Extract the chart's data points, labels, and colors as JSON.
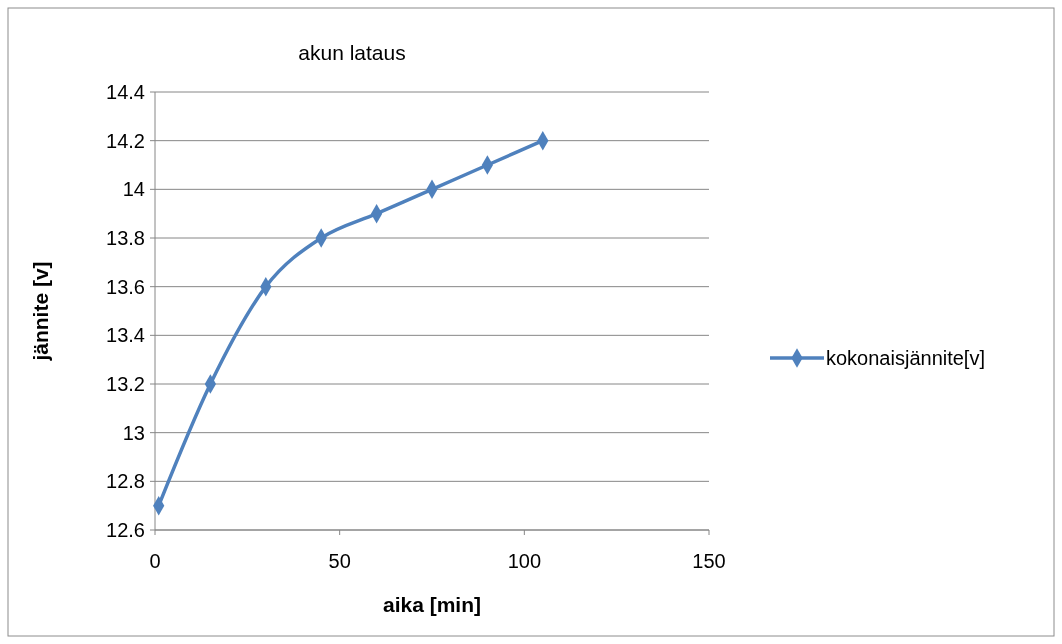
{
  "chart_data": {
    "type": "line",
    "title": "akun lataus",
    "xlabel": "aika [min]",
    "ylabel": "jännite [v]",
    "x": [
      1,
      15,
      30,
      45,
      60,
      75,
      90,
      105
    ],
    "series": [
      {
        "name": "kokonaisjännite[v]",
        "color": "#4f81bd",
        "values": [
          12.7,
          13.2,
          13.6,
          13.8,
          13.9,
          14.0,
          14.1,
          14.2
        ]
      }
    ],
    "xlim": [
      0,
      150
    ],
    "xticks": [
      0,
      50,
      100,
      150
    ],
    "ylim": [
      12.6,
      14.4
    ],
    "yticks": [
      {
        "value": 12.6,
        "label": "12.6"
      },
      {
        "value": 12.8,
        "label": "12.8"
      },
      {
        "value": 13,
        "label": "13"
      },
      {
        "value": 13.2,
        "label": "13.2"
      },
      {
        "value": 13.4,
        "label": "13.4"
      },
      {
        "value": 13.6,
        "label": "13.6"
      },
      {
        "value": 13.8,
        "label": "13.8"
      },
      {
        "value": 14,
        "label": "14"
      },
      {
        "value": 14.2,
        "label": "14.2"
      },
      {
        "value": 14.4,
        "label": "14.4"
      }
    ],
    "grid": "y",
    "legend": "right",
    "marker": "diamond",
    "line_style": "solid"
  }
}
